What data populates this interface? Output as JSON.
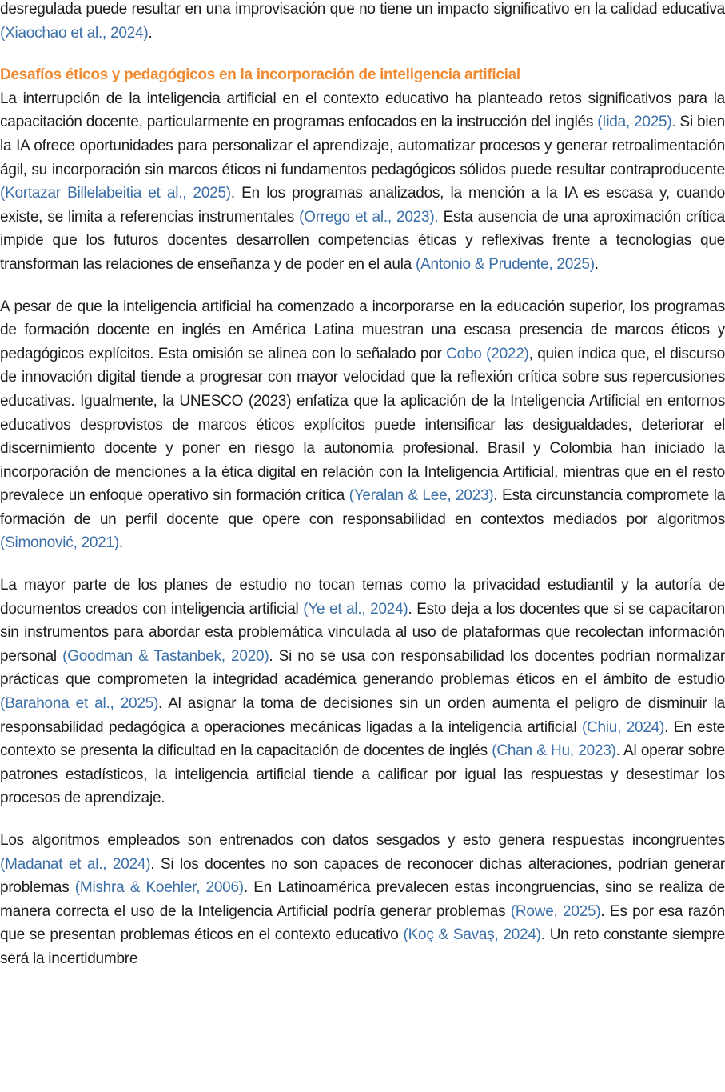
{
  "paragraphs_before": [
    [
      "desregulada puede resultar en una improvisación que no tiene un impacto significativo en la calidad educativa ",
      {
        "citation": "(Xiaochao et al., 2024)"
      },
      "."
    ]
  ],
  "heading": "Desafíos éticos y pedagógicos en la incorporación de inteligencia artificial",
  "paragraphs": [
    [
      "La interrupción de la inteligencia artificial en el contexto educativo ha planteado retos significativos para la capacitación docente, particularmente en programas enfocados en la instrucción del inglés ",
      {
        "citation": "(Iida, 2025)."
      },
      " Si bien la IA ofrece oportunidades para personalizar el aprendizaje, automatizar procesos y generar retroalimentación ágil, su incorporación sin marcos éticos ni fundamentos pedagógicos sólidos puede resultar contraproducente ",
      {
        "citation": "(Kortazar Billelabeitia et al., 2025)"
      },
      ". En los programas analizados, la mención a la IA es escasa y, cuando existe, se limita a referencias instrumentales ",
      {
        "citation": "(Orrego et al., 2023)."
      },
      " Esta ausencia de una aproximación crítica impide que los futuros docentes desarrollen competencias éticas y reflexivas frente a tecnologías que transforman las relaciones de enseñanza y de poder en el aula ",
      {
        "citation": "(Antonio & Prudente, 2025)"
      },
      "."
    ],
    [
      "A pesar de que la inteligencia artificial ha comenzado a incorporarse en la educación superior, los programas de formación docente en inglés en América Latina muestran una escasa presencia de marcos éticos y pedagógicos explícitos. Esta omisión se alinea con lo señalado por ",
      {
        "citation": "Cobo (2022)"
      },
      ", quien indica que, el discurso de innovación digital tiende a progresar con mayor velocidad que la reflexión crítica sobre sus repercusiones educativas. Igualmente, la UNESCO (2023) enfatiza que la aplicación de la Inteligencia Artificial en entornos educativos desprovistos de marcos éticos explícitos puede intensificar las desigualdades, deteriorar el discernimiento docente y poner en riesgo la autonomía profesional. Brasil y Colombia han iniciado la incorporación de menciones a la ética digital en relación con la Inteligencia Artificial, mientras que en el resto prevalece un enfoque operativo sin formación crítica ",
      {
        "citation": "(Yeralan & Lee, 2023)"
      },
      ". Esta circunstancia compromete la formación de un perfil docente que opere con responsabilidad en contextos mediados por algoritmos ",
      {
        "citation": "(Simonović, 2021)"
      },
      "."
    ],
    [
      "La mayor parte de los planes de estudio no tocan temas como la privacidad estudiantil y la autoría de documentos creados con inteligencia artificial ",
      {
        "citation": "(Ye et al., 2024)"
      },
      ". Esto deja a los docentes que si se capacitaron sin instrumentos para abordar esta problemática vinculada al uso de plataformas que recolectan información personal ",
      {
        "citation": "(Goodman & Tastanbek, 2020)"
      },
      ". Si no se usa con responsabilidad los docentes podrían normalizar prácticas que comprometen la integridad académica generando problemas éticos en el ámbito de estudio ",
      {
        "citation": "(Barahona et al., 2025)"
      },
      ". Al asignar la toma de decisiones sin un orden aumenta el peligro de disminuir la responsabilidad pedagógica a operaciones mecánicas ligadas a la inteligencia artificial ",
      {
        "citation": "(Chiu, 2024)"
      },
      ". En este contexto se presenta la dificultad en la capacitación de docentes de inglés ",
      {
        "citation": "(Chan & Hu, 2023)"
      },
      ". Al operar sobre patrones estadísticos, la inteligencia artificial tiende a calificar por igual las respuestas y desestimar los procesos de aprendizaje."
    ],
    [
      "Los algoritmos empleados son entrenados con datos sesgados y esto genera respuestas incongruentes ",
      {
        "citation": "(Madanat et al., 2024)"
      },
      ". Si los docentes no son capaces de reconocer dichas alteraciones, podrían generar problemas ",
      {
        "citation": "(Mishra & Koehler, 2006)"
      },
      ". En Latinoamérica prevalecen estas incongruencias, sino se realiza de manera correcta el uso de la Inteligencia Artificial podría generar problemas ",
      {
        "citation": "(Rowe, 2025)"
      },
      ". Es por esa razón que se presentan problemas éticos en el contexto educativo ",
      {
        "citation": "(Koç & Savaş, 2024)"
      },
      ". Un reto constante siempre será la incertidumbre"
    ]
  ]
}
